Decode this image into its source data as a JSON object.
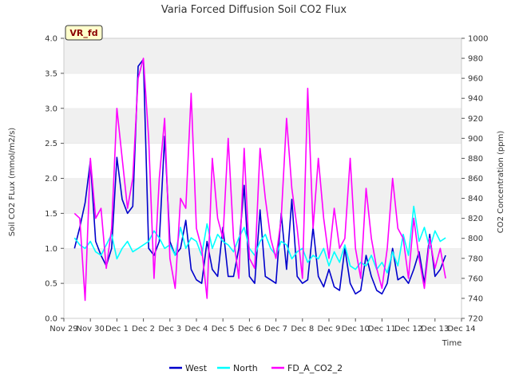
{
  "chart_data": {
    "type": "line",
    "title": "Varia Forced Diffusion Soil CO2 Flux",
    "badge": "VR_fd",
    "xlabel": "Time",
    "ylabel": "Soil CO2 FLux (mmol/m2/s)",
    "y2label": "CO2 Concentration (ppm)",
    "ylim": [
      0.0,
      4.0
    ],
    "y2lim": [
      720,
      1000
    ],
    "xlim": [
      0,
      15
    ],
    "x_tick_labels": [
      "Nov 29",
      "Nov 30",
      "Dec 1",
      "Dec 2",
      "Dec 3",
      "Dec 4",
      "Dec 5",
      "Dec 6",
      "Dec 7",
      "Dec 8",
      "Dec 9",
      "Dec 10",
      "Dec 11",
      "Dec 12",
      "Dec 13",
      "Dec 14"
    ],
    "y_tick_labels": [
      "0.0",
      "0.5",
      "1.0",
      "1.5",
      "2.0",
      "2.5",
      "3.0",
      "3.5",
      "4.0"
    ],
    "y2_tick_labels": [
      "720",
      "740",
      "760",
      "780",
      "800",
      "820",
      "840",
      "860",
      "880",
      "900",
      "920",
      "940",
      "960",
      "980",
      "1000"
    ],
    "grid": "horizontal bands",
    "legend_position": "bottom",
    "series": [
      {
        "name": "West",
        "axis": "left",
        "color": "#0000cc",
        "x": [
          0.4,
          0.6,
          0.8,
          1.0,
          1.2,
          1.4,
          1.6,
          1.8,
          2.0,
          2.2,
          2.4,
          2.6,
          2.8,
          3.0,
          3.2,
          3.4,
          3.6,
          3.8,
          4.0,
          4.2,
          4.4,
          4.6,
          4.8,
          5.0,
          5.2,
          5.4,
          5.6,
          5.8,
          6.0,
          6.2,
          6.4,
          6.6,
          6.8,
          7.0,
          7.2,
          7.4,
          7.6,
          7.8,
          8.0,
          8.2,
          8.4,
          8.6,
          8.8,
          9.0,
          9.2,
          9.4,
          9.6,
          9.8,
          10.0,
          10.2,
          10.4,
          10.6,
          10.8,
          11.0,
          11.2,
          11.4,
          11.6,
          11.8,
          12.0,
          12.2,
          12.4,
          12.6,
          12.8,
          13.0,
          13.2,
          13.4,
          13.6,
          13.8,
          14.0,
          14.2,
          14.4
        ],
        "values": [
          1.0,
          1.3,
          1.65,
          2.25,
          1.1,
          0.9,
          0.75,
          1.0,
          2.3,
          1.7,
          1.5,
          1.6,
          3.6,
          3.7,
          1.0,
          0.9,
          1.1,
          2.6,
          1.1,
          0.9,
          1.0,
          1.4,
          0.7,
          0.55,
          0.5,
          1.1,
          0.7,
          0.6,
          1.3,
          0.6,
          0.6,
          1.0,
          1.9,
          0.6,
          0.5,
          1.55,
          0.6,
          0.55,
          0.5,
          1.5,
          0.7,
          1.7,
          0.6,
          0.5,
          0.55,
          1.3,
          0.6,
          0.45,
          0.7,
          0.45,
          0.4,
          1.0,
          0.5,
          0.35,
          0.4,
          0.9,
          0.6,
          0.4,
          0.35,
          0.5,
          1.0,
          0.55,
          0.6,
          0.5,
          0.7,
          0.95,
          0.5,
          1.2,
          0.6,
          0.7,
          0.9
        ]
      },
      {
        "name": "North",
        "axis": "left",
        "color": "#00ffff",
        "x": [
          0.4,
          0.6,
          0.8,
          1.0,
          1.2,
          1.4,
          1.6,
          1.8,
          2.0,
          2.2,
          2.4,
          2.6,
          2.8,
          3.0,
          3.2,
          3.4,
          3.6,
          3.8,
          4.0,
          4.2,
          4.4,
          4.6,
          4.8,
          5.0,
          5.2,
          5.4,
          5.6,
          5.8,
          6.0,
          6.2,
          6.4,
          6.6,
          6.8,
          7.0,
          7.2,
          7.4,
          7.6,
          7.8,
          8.0,
          8.2,
          8.4,
          8.6,
          8.8,
          9.0,
          9.2,
          9.4,
          9.6,
          9.8,
          10.0,
          10.2,
          10.4,
          10.6,
          10.8,
          11.0,
          11.2,
          11.4,
          11.6,
          11.8,
          12.0,
          12.2,
          12.4,
          12.6,
          12.8,
          13.0,
          13.2,
          13.4,
          13.6,
          13.8,
          14.0,
          14.2,
          14.4
        ],
        "values": [
          1.15,
          1.05,
          1.0,
          1.1,
          0.95,
          0.9,
          1.05,
          1.2,
          0.85,
          1.0,
          1.1,
          0.95,
          1.0,
          1.05,
          1.1,
          1.25,
          1.15,
          1.0,
          1.05,
          0.9,
          1.3,
          1.0,
          1.15,
          1.1,
          0.9,
          1.35,
          1.0,
          1.2,
          1.1,
          1.05,
          0.95,
          1.15,
          1.3,
          1.0,
          0.9,
          1.1,
          1.2,
          1.0,
          0.9,
          1.1,
          1.05,
          0.85,
          0.95,
          1.0,
          0.8,
          0.9,
          0.85,
          1.0,
          0.75,
          0.95,
          0.8,
          1.05,
          0.75,
          0.7,
          0.8,
          0.75,
          0.9,
          0.7,
          0.8,
          0.65,
          0.95,
          0.75,
          1.2,
          0.9,
          1.6,
          1.1,
          1.3,
          1.0,
          1.25,
          1.1,
          1.15
        ]
      },
      {
        "name": "FD_A_CO2_2",
        "axis": "right",
        "color": "#ff00ff",
        "x": [
          0.4,
          0.6,
          0.8,
          1.0,
          1.2,
          1.4,
          1.6,
          1.8,
          2.0,
          2.2,
          2.4,
          2.6,
          2.8,
          3.0,
          3.2,
          3.4,
          3.6,
          3.8,
          4.0,
          4.2,
          4.4,
          4.6,
          4.8,
          5.0,
          5.2,
          5.4,
          5.6,
          5.8,
          6.0,
          6.2,
          6.4,
          6.6,
          6.8,
          7.0,
          7.2,
          7.4,
          7.6,
          7.8,
          8.0,
          8.2,
          8.4,
          8.6,
          8.8,
          9.0,
          9.2,
          9.4,
          9.6,
          9.8,
          10.0,
          10.2,
          10.4,
          10.6,
          10.8,
          11.0,
          11.2,
          11.4,
          11.6,
          11.8,
          12.0,
          12.2,
          12.4,
          12.6,
          12.8,
          13.0,
          13.2,
          13.4,
          13.6,
          13.8,
          14.0,
          14.2,
          14.4
        ],
        "values": [
          825,
          820,
          738,
          880,
          820,
          830,
          770,
          810,
          930,
          880,
          830,
          860,
          960,
          980,
          900,
          760,
          860,
          920,
          780,
          750,
          840,
          830,
          945,
          810,
          790,
          740,
          880,
          820,
          800,
          900,
          800,
          760,
          890,
          780,
          770,
          890,
          840,
          800,
          780,
          820,
          920,
          850,
          810,
          760,
          950,
          810,
          880,
          820,
          780,
          830,
          790,
          800,
          880,
          790,
          760,
          850,
          800,
          770,
          750,
          790,
          860,
          810,
          800,
          760,
          820,
          780,
          750,
          800,
          770,
          790,
          760
        ]
      }
    ]
  }
}
